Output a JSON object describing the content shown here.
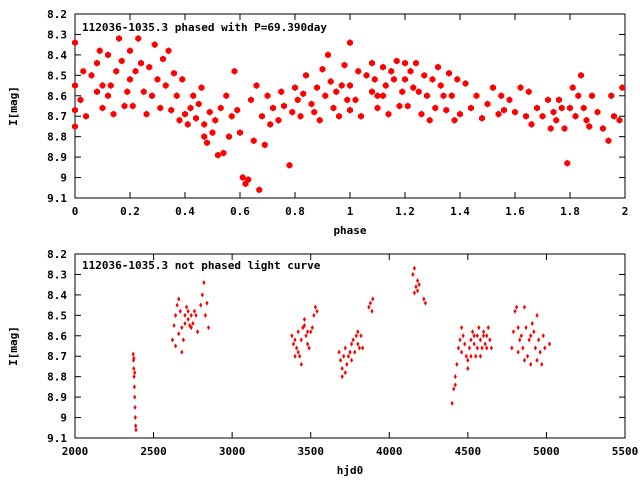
{
  "chart_data": [
    {
      "type": "scatter",
      "title": "112036-1035.3 phased with P=69.390day",
      "xlabel": "phase",
      "ylabel": "I[mag]",
      "xlim": [
        0,
        2
      ],
      "ylim": [
        8.2,
        9.1
      ],
      "y_inverted": true,
      "grid": false,
      "marker_color": "#ff0000",
      "marker": "filled-star",
      "x_ticks": [
        0,
        0.2,
        0.4,
        0.6,
        0.8,
        1,
        1.2,
        1.4,
        1.6,
        1.8,
        2
      ],
      "x_tick_labels": [
        "0",
        "0.2",
        "0.4",
        "0.6",
        "0.8",
        "1",
        "1.2",
        "1.4",
        "1.6",
        "1.8",
        "2"
      ],
      "y_ticks": [
        8.2,
        8.3,
        8.4,
        8.5,
        8.6,
        8.7,
        8.8,
        8.9,
        9.0,
        9.1
      ],
      "y_tick_labels": [
        "8.2",
        "8.3",
        "8.4",
        "8.5",
        "8.6",
        "8.7",
        "8.8",
        "8.9",
        "9",
        "9.1"
      ],
      "points": [
        [
          0.0,
          8.34
        ],
        [
          0.0,
          8.55
        ],
        [
          0.0,
          8.67
        ],
        [
          0.0,
          8.75
        ],
        [
          0.02,
          8.62
        ],
        [
          0.03,
          8.48
        ],
        [
          0.04,
          8.7
        ],
        [
          0.06,
          8.5
        ],
        [
          0.08,
          8.58
        ],
        [
          0.08,
          8.44
        ],
        [
          0.09,
          8.38
        ],
        [
          0.1,
          8.55
        ],
        [
          0.1,
          8.66
        ],
        [
          0.12,
          8.4
        ],
        [
          0.12,
          8.6
        ],
        [
          0.13,
          8.55
        ],
        [
          0.14,
          8.69
        ],
        [
          0.15,
          8.48
        ],
        [
          0.16,
          8.32
        ],
        [
          0.17,
          8.43
        ],
        [
          0.18,
          8.65
        ],
        [
          0.19,
          8.58
        ],
        [
          0.2,
          8.52
        ],
        [
          0.2,
          8.38
        ],
        [
          0.21,
          8.65
        ],
        [
          0.22,
          8.48
        ],
        [
          0.23,
          8.32
        ],
        [
          0.24,
          8.44
        ],
        [
          0.25,
          8.58
        ],
        [
          0.26,
          8.69
        ],
        [
          0.27,
          8.46
        ],
        [
          0.28,
          8.6
        ],
        [
          0.29,
          8.35
        ],
        [
          0.3,
          8.52
        ],
        [
          0.31,
          8.66
        ],
        [
          0.32,
          8.42
        ],
        [
          0.33,
          8.55
        ],
        [
          0.34,
          8.38
        ],
        [
          0.35,
          8.67
        ],
        [
          0.36,
          8.49
        ],
        [
          0.37,
          8.6
        ],
        [
          0.38,
          8.72
        ],
        [
          0.39,
          8.52
        ],
        [
          0.4,
          8.69
        ],
        [
          0.41,
          8.74
        ],
        [
          0.42,
          8.66
        ],
        [
          0.43,
          8.6
        ],
        [
          0.44,
          8.71
        ],
        [
          0.45,
          8.64
        ],
        [
          0.46,
          8.56
        ],
        [
          0.47,
          8.74
        ],
        [
          0.47,
          8.8
        ],
        [
          0.48,
          8.83
        ],
        [
          0.49,
          8.68
        ],
        [
          0.5,
          8.78
        ],
        [
          0.51,
          8.72
        ],
        [
          0.52,
          8.89
        ],
        [
          0.53,
          8.66
        ],
        [
          0.54,
          8.88
        ],
        [
          0.55,
          8.6
        ],
        [
          0.56,
          8.8
        ],
        [
          0.57,
          8.7
        ],
        [
          0.58,
          8.48
        ],
        [
          0.59,
          8.67
        ],
        [
          0.6,
          8.78
        ],
        [
          0.61,
          9.0
        ],
        [
          0.62,
          9.03
        ],
        [
          0.63,
          9.01
        ],
        [
          0.64,
          8.62
        ],
        [
          0.65,
          8.82
        ],
        [
          0.66,
          8.55
        ],
        [
          0.67,
          9.06
        ],
        [
          0.68,
          8.7
        ],
        [
          0.69,
          8.84
        ],
        [
          0.7,
          8.6
        ],
        [
          0.71,
          8.74
        ],
        [
          0.72,
          8.66
        ],
        [
          0.74,
          8.72
        ],
        [
          0.75,
          8.58
        ],
        [
          0.76,
          8.65
        ],
        [
          0.78,
          8.94
        ],
        [
          0.79,
          8.68
        ],
        [
          0.8,
          8.56
        ],
        [
          0.81,
          8.62
        ],
        [
          0.82,
          8.7
        ],
        [
          0.83,
          8.59
        ],
        [
          0.84,
          8.5
        ],
        [
          0.86,
          8.64
        ],
        [
          0.87,
          8.68
        ],
        [
          0.88,
          8.56
        ],
        [
          0.89,
          8.72
        ],
        [
          0.9,
          8.47
        ],
        [
          0.91,
          8.6
        ],
        [
          0.92,
          8.4
        ],
        [
          0.93,
          8.53
        ],
        [
          0.94,
          8.66
        ],
        [
          0.95,
          8.58
        ],
        [
          0.96,
          8.7
        ],
        [
          0.97,
          8.55
        ],
        [
          0.98,
          8.45
        ],
        [
          0.99,
          8.62
        ],
        [
          1.0,
          8.34
        ],
        [
          1.0,
          8.55
        ],
        [
          1.0,
          8.67
        ],
        [
          1.02,
          8.62
        ],
        [
          1.03,
          8.48
        ],
        [
          1.04,
          8.7
        ],
        [
          1.06,
          8.5
        ],
        [
          1.08,
          8.58
        ],
        [
          1.08,
          8.44
        ],
        [
          1.09,
          8.52
        ],
        [
          1.1,
          8.6
        ],
        [
          1.1,
          8.66
        ],
        [
          1.12,
          8.46
        ],
        [
          1.12,
          8.6
        ],
        [
          1.13,
          8.55
        ],
        [
          1.14,
          8.69
        ],
        [
          1.15,
          8.48
        ],
        [
          1.16,
          8.52
        ],
        [
          1.17,
          8.43
        ],
        [
          1.18,
          8.65
        ],
        [
          1.19,
          8.58
        ],
        [
          1.2,
          8.52
        ],
        [
          1.2,
          8.44
        ],
        [
          1.21,
          8.65
        ],
        [
          1.22,
          8.48
        ],
        [
          1.23,
          8.56
        ],
        [
          1.24,
          8.44
        ],
        [
          1.25,
          8.58
        ],
        [
          1.26,
          8.69
        ],
        [
          1.27,
          8.5
        ],
        [
          1.28,
          8.6
        ],
        [
          1.29,
          8.72
        ],
        [
          1.3,
          8.52
        ],
        [
          1.31,
          8.66
        ],
        [
          1.32,
          8.46
        ],
        [
          1.33,
          8.55
        ],
        [
          1.34,
          8.6
        ],
        [
          1.35,
          8.67
        ],
        [
          1.36,
          8.49
        ],
        [
          1.37,
          8.6
        ],
        [
          1.38,
          8.72
        ],
        [
          1.39,
          8.52
        ],
        [
          1.4,
          8.69
        ],
        [
          1.42,
          8.54
        ],
        [
          1.44,
          8.66
        ],
        [
          1.46,
          8.6
        ],
        [
          1.48,
          8.71
        ],
        [
          1.5,
          8.64
        ],
        [
          1.52,
          8.56
        ],
        [
          1.54,
          8.69
        ],
        [
          1.55,
          8.6
        ],
        [
          1.56,
          8.67
        ],
        [
          1.58,
          8.62
        ],
        [
          1.6,
          8.68
        ],
        [
          1.62,
          8.56
        ],
        [
          1.64,
          8.7
        ],
        [
          1.65,
          8.58
        ],
        [
          1.66,
          8.74
        ],
        [
          1.68,
          8.66
        ],
        [
          1.7,
          8.7
        ],
        [
          1.72,
          8.62
        ],
        [
          1.73,
          8.76
        ],
        [
          1.74,
          8.68
        ],
        [
          1.75,
          8.72
        ],
        [
          1.76,
          8.62
        ],
        [
          1.77,
          8.66
        ],
        [
          1.78,
          8.76
        ],
        [
          1.79,
          8.93
        ],
        [
          1.8,
          8.66
        ],
        [
          1.81,
          8.56
        ],
        [
          1.82,
          8.7
        ],
        [
          1.83,
          8.6
        ],
        [
          1.84,
          8.5
        ],
        [
          1.85,
          8.66
        ],
        [
          1.86,
          8.72
        ],
        [
          1.87,
          8.75
        ],
        [
          1.88,
          8.6
        ],
        [
          1.9,
          8.68
        ],
        [
          1.92,
          8.76
        ],
        [
          1.94,
          8.82
        ],
        [
          1.95,
          8.6
        ],
        [
          1.96,
          8.7
        ],
        [
          1.98,
          8.72
        ],
        [
          1.99,
          8.56
        ]
      ]
    },
    {
      "type": "scatter",
      "title": "112036-1035.3 not phased light curve",
      "xlabel": "hjd0",
      "ylabel": "I[mag]",
      "xlim": [
        2000,
        5500
      ],
      "ylim": [
        8.2,
        9.1
      ],
      "y_inverted": true,
      "grid": false,
      "marker_color": "#ff0000",
      "marker": "filled-diamond",
      "x_ticks": [
        2000,
        2500,
        3000,
        3500,
        4000,
        4500,
        5000,
        5500
      ],
      "x_tick_labels": [
        "2000",
        "2500",
        "3000",
        "3500",
        "4000",
        "4500",
        "5000",
        "5500"
      ],
      "y_ticks": [
        8.2,
        8.3,
        8.4,
        8.5,
        8.6,
        8.7,
        8.8,
        8.9,
        9.0,
        9.1
      ],
      "y_tick_labels": [
        "8.2",
        "8.3",
        "8.4",
        "8.5",
        "8.6",
        "8.7",
        "8.8",
        "8.9",
        "9",
        "9.1"
      ],
      "points": [
        [
          2370,
          8.69
        ],
        [
          2372,
          8.72
        ],
        [
          2374,
          8.76
        ],
        [
          2376,
          8.8
        ],
        [
          2378,
          8.85
        ],
        [
          2380,
          8.9
        ],
        [
          2382,
          8.95
        ],
        [
          2384,
          9.0
        ],
        [
          2386,
          9.04
        ],
        [
          2388,
          9.06
        ],
        [
          2375,
          8.71
        ],
        [
          2380,
          8.78
        ],
        [
          2620,
          8.62
        ],
        [
          2630,
          8.55
        ],
        [
          2640,
          8.5
        ],
        [
          2650,
          8.45
        ],
        [
          2660,
          8.42
        ],
        [
          2670,
          8.48
        ],
        [
          2680,
          8.56
        ],
        [
          2690,
          8.62
        ],
        [
          2700,
          8.5
        ],
        [
          2710,
          8.46
        ],
        [
          2720,
          8.52
        ],
        [
          2730,
          8.55
        ],
        [
          2740,
          8.5
        ],
        [
          2750,
          8.54
        ],
        [
          2760,
          8.48
        ],
        [
          2770,
          8.5
        ],
        [
          2780,
          8.58
        ],
        [
          2640,
          8.65
        ],
        [
          2660,
          8.59
        ],
        [
          2680,
          8.68
        ],
        [
          2700,
          8.54
        ],
        [
          2720,
          8.48
        ],
        [
          2740,
          8.56
        ],
        [
          2800,
          8.45
        ],
        [
          2810,
          8.4
        ],
        [
          2820,
          8.34
        ],
        [
          2830,
          8.5
        ],
        [
          2840,
          8.44
        ],
        [
          2850,
          8.56
        ],
        [
          3380,
          8.6
        ],
        [
          3390,
          8.64
        ],
        [
          3400,
          8.62
        ],
        [
          3410,
          8.66
        ],
        [
          3420,
          8.58
        ],
        [
          3430,
          8.7
        ],
        [
          3440,
          8.74
        ],
        [
          3450,
          8.56
        ],
        [
          3460,
          8.52
        ],
        [
          3470,
          8.6
        ],
        [
          3480,
          8.64
        ],
        [
          3490,
          8.66
        ],
        [
          3500,
          8.58
        ],
        [
          3510,
          8.56
        ],
        [
          3520,
          8.5
        ],
        [
          3530,
          8.46
        ],
        [
          3540,
          8.48
        ],
        [
          3400,
          8.7
        ],
        [
          3420,
          8.68
        ],
        [
          3440,
          8.62
        ],
        [
          3460,
          8.55
        ],
        [
          3480,
          8.58
        ],
        [
          3680,
          8.68
        ],
        [
          3690,
          8.72
        ],
        [
          3700,
          8.76
        ],
        [
          3710,
          8.7
        ],
        [
          3720,
          8.66
        ],
        [
          3730,
          8.74
        ],
        [
          3740,
          8.7
        ],
        [
          3750,
          8.68
        ],
        [
          3760,
          8.64
        ],
        [
          3770,
          8.62
        ],
        [
          3780,
          8.68
        ],
        [
          3790,
          8.6
        ],
        [
          3800,
          8.64
        ],
        [
          3810,
          8.66
        ],
        [
          3820,
          8.6
        ],
        [
          3830,
          8.66
        ],
        [
          3700,
          8.8
        ],
        [
          3720,
          8.78
        ],
        [
          3760,
          8.72
        ],
        [
          3800,
          8.58
        ],
        [
          3870,
          8.46
        ],
        [
          3880,
          8.44
        ],
        [
          3890,
          8.48
        ],
        [
          3895,
          8.42
        ],
        [
          4150,
          8.3
        ],
        [
          4160,
          8.27
        ],
        [
          4170,
          8.36
        ],
        [
          4180,
          8.38
        ],
        [
          4190,
          8.35
        ],
        [
          4220,
          8.42
        ],
        [
          4230,
          8.44
        ],
        [
          4160,
          8.39
        ],
        [
          4180,
          8.33
        ],
        [
          4400,
          8.93
        ],
        [
          4410,
          8.86
        ],
        [
          4420,
          8.8
        ],
        [
          4430,
          8.74
        ],
        [
          4440,
          8.66
        ],
        [
          4450,
          8.62
        ],
        [
          4460,
          8.56
        ],
        [
          4470,
          8.6
        ],
        [
          4480,
          8.64
        ],
        [
          4490,
          8.7
        ],
        [
          4500,
          8.76
        ],
        [
          4510,
          8.66
        ],
        [
          4520,
          8.62
        ],
        [
          4530,
          8.58
        ],
        [
          4540,
          8.64
        ],
        [
          4550,
          8.7
        ],
        [
          4560,
          8.6
        ],
        [
          4570,
          8.56
        ],
        [
          4580,
          8.62
        ],
        [
          4590,
          8.66
        ],
        [
          4600,
          8.58
        ],
        [
          4610,
          8.64
        ],
        [
          4620,
          8.6
        ],
        [
          4630,
          8.56
        ],
        [
          4640,
          8.62
        ],
        [
          4650,
          8.66
        ],
        [
          4420,
          8.84
        ],
        [
          4460,
          8.68
        ],
        [
          4500,
          8.72
        ],
        [
          4520,
          8.7
        ],
        [
          4540,
          8.6
        ],
        [
          4560,
          8.66
        ],
        [
          4580,
          8.7
        ],
        [
          4600,
          8.6
        ],
        [
          4620,
          8.66
        ],
        [
          4780,
          8.66
        ],
        [
          4790,
          8.58
        ],
        [
          4800,
          8.48
        ],
        [
          4810,
          8.46
        ],
        [
          4820,
          8.56
        ],
        [
          4830,
          8.62
        ],
        [
          4840,
          8.6
        ],
        [
          4850,
          8.66
        ],
        [
          4860,
          8.46
        ],
        [
          4870,
          8.56
        ],
        [
          4880,
          8.7
        ],
        [
          4890,
          8.62
        ],
        [
          4900,
          8.6
        ],
        [
          4910,
          8.54
        ],
        [
          4920,
          8.58
        ],
        [
          4930,
          8.66
        ],
        [
          4940,
          8.72
        ],
        [
          4950,
          8.62
        ],
        [
          4960,
          8.68
        ],
        [
          4970,
          8.74
        ],
        [
          4980,
          8.6
        ],
        [
          4990,
          8.66
        ],
        [
          5020,
          8.64
        ],
        [
          4820,
          8.68
        ],
        [
          4860,
          8.72
        ],
        [
          4900,
          8.74
        ],
        [
          4940,
          8.5
        ]
      ]
    }
  ]
}
